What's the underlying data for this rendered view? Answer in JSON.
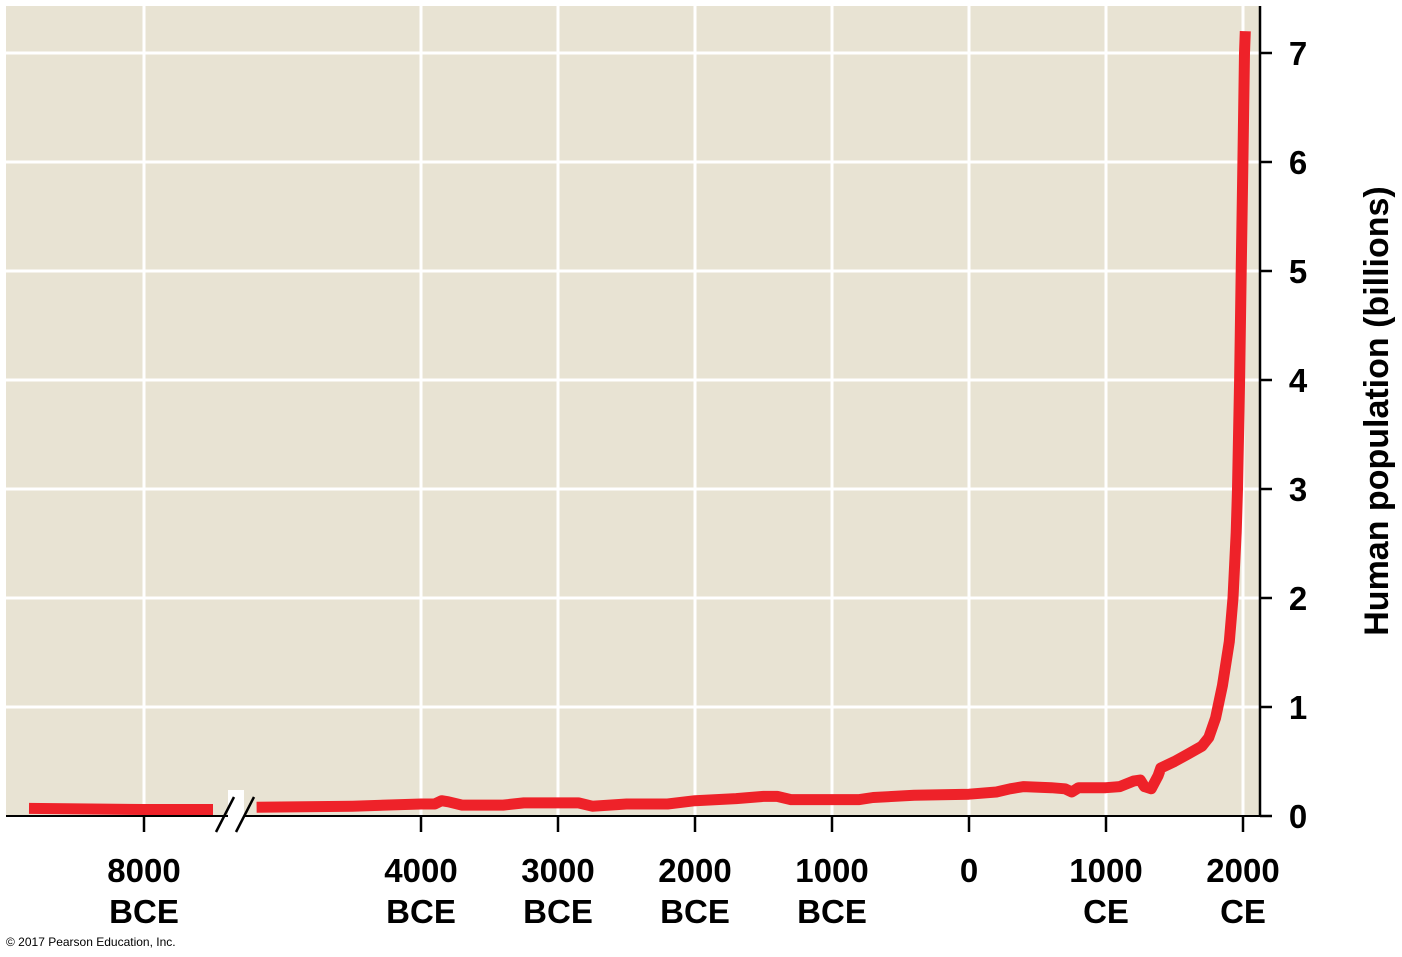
{
  "chart_data": {
    "type": "line",
    "title": "",
    "xlabel": "",
    "ylabel": "Human population (billions)",
    "ylim": [
      0,
      7.4
    ],
    "grid": true,
    "axis_break": "between 8000 BCE and 4000 BCE",
    "x_ticks": [
      {
        "year": -8000,
        "line1": "8000",
        "line2": "BCE"
      },
      {
        "year": -4000,
        "line1": "4000",
        "line2": "BCE"
      },
      {
        "year": -3000,
        "line1": "3000",
        "line2": "BCE"
      },
      {
        "year": -2000,
        "line1": "2000",
        "line2": "BCE"
      },
      {
        "year": -1000,
        "line1": "1000",
        "line2": "BCE"
      },
      {
        "year": 0,
        "line1": "0",
        "line2": ""
      },
      {
        "year": 1000,
        "line1": "1000",
        "line2": "CE"
      },
      {
        "year": 2000,
        "line1": "2000",
        "line2": "CE"
      }
    ],
    "y_ticks": [
      0,
      1,
      2,
      3,
      4,
      5,
      6,
      7
    ],
    "series": [
      {
        "color": "#ee2229",
        "points": [
          [
            -9000,
            0.07
          ],
          [
            -8000,
            0.06
          ],
          [
            -7400,
            0.06
          ],
          [
            -5200,
            0.08
          ],
          [
            -4500,
            0.09
          ],
          [
            -4000,
            0.11
          ],
          [
            -3900,
            0.11
          ],
          [
            -3850,
            0.14
          ],
          [
            -3800,
            0.13
          ],
          [
            -3700,
            0.1
          ],
          [
            -3400,
            0.1
          ],
          [
            -3250,
            0.12
          ],
          [
            -3000,
            0.12
          ],
          [
            -2850,
            0.12
          ],
          [
            -2750,
            0.09
          ],
          [
            -2500,
            0.11
          ],
          [
            -2200,
            0.11
          ],
          [
            -2000,
            0.14
          ],
          [
            -1700,
            0.16
          ],
          [
            -1500,
            0.18
          ],
          [
            -1400,
            0.18
          ],
          [
            -1300,
            0.15
          ],
          [
            -1000,
            0.15
          ],
          [
            -800,
            0.15
          ],
          [
            -700,
            0.17
          ],
          [
            -400,
            0.19
          ],
          [
            0,
            0.2
          ],
          [
            200,
            0.22
          ],
          [
            300,
            0.25
          ],
          [
            400,
            0.27
          ],
          [
            600,
            0.26
          ],
          [
            700,
            0.25
          ],
          [
            750,
            0.22
          ],
          [
            800,
            0.26
          ],
          [
            1000,
            0.26
          ],
          [
            1100,
            0.27
          ],
          [
            1200,
            0.32
          ],
          [
            1250,
            0.33
          ],
          [
            1280,
            0.27
          ],
          [
            1330,
            0.25
          ],
          [
            1380,
            0.37
          ],
          [
            1400,
            0.44
          ],
          [
            1500,
            0.5
          ],
          [
            1600,
            0.57
          ],
          [
            1700,
            0.64
          ],
          [
            1750,
            0.72
          ],
          [
            1800,
            0.9
          ],
          [
            1850,
            1.2
          ],
          [
            1900,
            1.6
          ],
          [
            1927,
            2.0
          ],
          [
            1950,
            2.6
          ],
          [
            1960,
            3.0
          ],
          [
            1975,
            4.0
          ],
          [
            1987,
            5.0
          ],
          [
            1999,
            6.0
          ],
          [
            2011,
            7.0
          ],
          [
            2017,
            7.2
          ]
        ]
      }
    ]
  },
  "credit": "© 2017 Pearson Education, Inc."
}
